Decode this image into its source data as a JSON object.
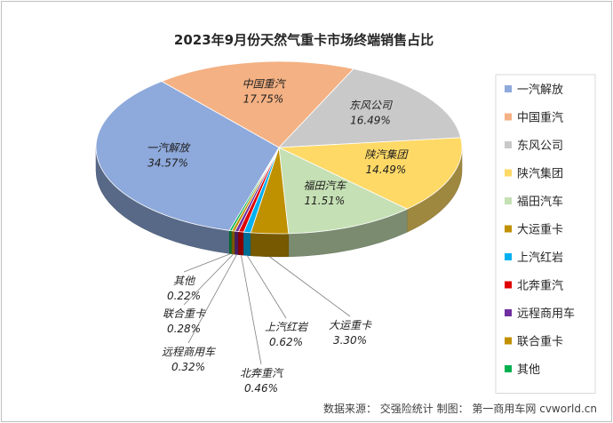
{
  "chart_data": {
    "type": "pie",
    "style": "3d-pie",
    "title": "2023年9月份天然气重卡市场终端销售占比",
    "series": [
      {
        "name": "一汽解放",
        "value": 34.57,
        "label": "34.57%",
        "color": "#8EA9DB"
      },
      {
        "name": "中国重汽",
        "value": 17.75,
        "label": "17.75%",
        "color": "#F4B183"
      },
      {
        "name": "东风公司",
        "value": 16.49,
        "label": "16.49%",
        "color": "#C9C9C9"
      },
      {
        "name": "陕汽集团",
        "value": 14.49,
        "label": "14.49%",
        "color": "#FFD966"
      },
      {
        "name": "福田汽车",
        "value": 11.51,
        "label": "11.51%",
        "color": "#C5E0B4"
      },
      {
        "name": "大运重卡",
        "value": 3.3,
        "label": "3.30%",
        "color": "#BF9000"
      },
      {
        "name": "上汽红岩",
        "value": 0.62,
        "label": "0.62%",
        "color": "#00B0F0"
      },
      {
        "name": "北奔重汽",
        "value": 0.46,
        "label": "0.46%",
        "color": "#E00000"
      },
      {
        "name": "远程商用车",
        "value": 0.32,
        "label": "0.32%",
        "color": "#7030A0"
      },
      {
        "name": "联合重卡",
        "value": 0.28,
        "label": "0.28%",
        "color": "#C09000"
      },
      {
        "name": "其他",
        "value": 0.22,
        "label": "0.22%",
        "color": "#00B050"
      }
    ],
    "legend_position": "right"
  },
  "source_note": "数据来源： 交强险统计  制图： 第一商用车网 cvworld.cn"
}
